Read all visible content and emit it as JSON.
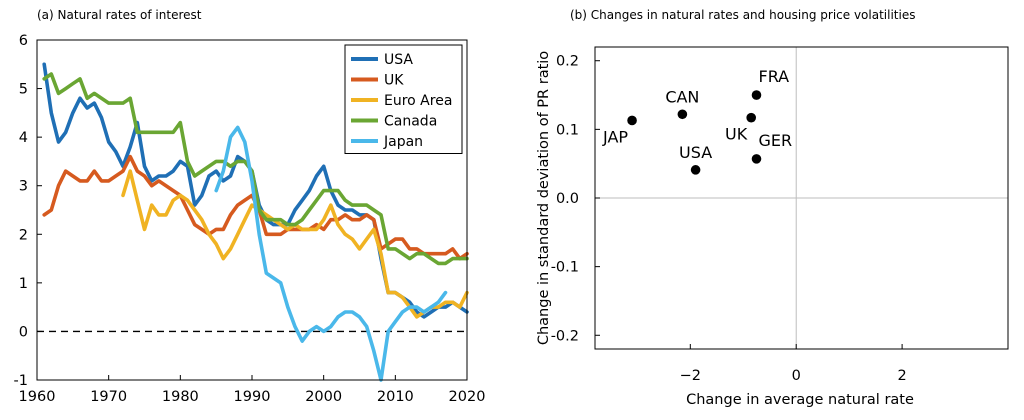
{
  "chart_data": [
    {
      "type": "line",
      "title": "(a) Natural rates of interest",
      "xlabel": "",
      "ylabel": "",
      "xlim": [
        1960,
        2020
      ],
      "ylim": [
        -1,
        6
      ],
      "xticks": [
        1960,
        1970,
        1980,
        1990,
        2000,
        2010,
        2020
      ],
      "yticks": [
        -1,
        0,
        1,
        2,
        3,
        4,
        5,
        6
      ],
      "reference_line": {
        "y": 0,
        "style": "dashed"
      },
      "legend_position": "top-right",
      "series": [
        {
          "name": "USA",
          "color": "#1f6fb5",
          "x": [
            1961,
            1962,
            1963,
            1964,
            1965,
            1966,
            1967,
            1968,
            1969,
            1970,
            1971,
            1972,
            1973,
            1974,
            1975,
            1976,
            1977,
            1978,
            1979,
            1980,
            1981,
            1982,
            1983,
            1984,
            1985,
            1986,
            1987,
            1988,
            1989,
            1990,
            1991,
            1992,
            1993,
            1994,
            1995,
            1996,
            1997,
            1998,
            1999,
            2000,
            2001,
            2002,
            2003,
            2004,
            2005,
            2006,
            2007,
            2008,
            2009,
            2010,
            2011,
            2012,
            2013,
            2014,
            2015,
            2016,
            2017,
            2018,
            2019,
            2020
          ],
          "y": [
            5.5,
            4.5,
            3.9,
            4.1,
            4.5,
            4.8,
            4.6,
            4.7,
            4.4,
            3.9,
            3.7,
            3.4,
            3.8,
            4.3,
            3.4,
            3.1,
            3.2,
            3.2,
            3.3,
            3.5,
            3.4,
            2.6,
            2.8,
            3.2,
            3.3,
            3.1,
            3.2,
            3.6,
            3.5,
            3.3,
            2.6,
            2.3,
            2.2,
            2.2,
            2.2,
            2.5,
            2.7,
            2.9,
            3.2,
            3.4,
            2.9,
            2.6,
            2.5,
            2.5,
            2.4,
            2.4,
            2.3,
            1.5,
            0.8,
            0.8,
            0.7,
            0.6,
            0.4,
            0.3,
            0.4,
            0.5,
            0.5,
            0.6,
            0.5,
            0.4
          ]
        },
        {
          "name": "UK",
          "color": "#d65a1f",
          "x": [
            1961,
            1962,
            1963,
            1964,
            1965,
            1966,
            1967,
            1968,
            1969,
            1970,
            1971,
            1972,
            1973,
            1974,
            1975,
            1976,
            1977,
            1978,
            1979,
            1980,
            1981,
            1982,
            1983,
            1984,
            1985,
            1986,
            1987,
            1988,
            1989,
            1990,
            1991,
            1992,
            1993,
            1994,
            1995,
            1996,
            1997,
            1998,
            1999,
            2000,
            2001,
            2002,
            2003,
            2004,
            2005,
            2006,
            2007,
            2008,
            2009,
            2010,
            2011,
            2012,
            2013,
            2014,
            2015,
            2016,
            2017,
            2018,
            2019,
            2020
          ],
          "y": [
            2.4,
            2.5,
            3.0,
            3.3,
            3.2,
            3.1,
            3.1,
            3.3,
            3.1,
            3.1,
            3.2,
            3.3,
            3.6,
            3.3,
            3.2,
            3.0,
            3.1,
            3.0,
            2.9,
            2.8,
            2.5,
            2.2,
            2.1,
            2.0,
            2.1,
            2.1,
            2.4,
            2.6,
            2.7,
            2.8,
            2.5,
            2.0,
            2.0,
            2.0,
            2.1,
            2.1,
            2.1,
            2.1,
            2.2,
            2.1,
            2.3,
            2.3,
            2.4,
            2.3,
            2.3,
            2.4,
            2.3,
            1.7,
            1.8,
            1.9,
            1.9,
            1.7,
            1.7,
            1.6,
            1.6,
            1.6,
            1.6,
            1.7,
            1.5,
            1.6
          ]
        },
        {
          "name": "Euro Area",
          "color": "#f0b323",
          "x": [
            1972,
            1973,
            1974,
            1975,
            1976,
            1977,
            1978,
            1979,
            1980,
            1981,
            1982,
            1983,
            1984,
            1985,
            1986,
            1987,
            1988,
            1989,
            1990,
            1991,
            1992,
            1993,
            1994,
            1995,
            1996,
            1997,
            1998,
            1999,
            2000,
            2001,
            2002,
            2003,
            2004,
            2005,
            2006,
            2007,
            2008,
            2009,
            2010,
            2011,
            2012,
            2013,
            2014,
            2015,
            2016,
            2017,
            2018,
            2019,
            2020
          ],
          "y": [
            2.8,
            3.3,
            2.7,
            2.1,
            2.6,
            2.4,
            2.4,
            2.7,
            2.8,
            2.7,
            2.5,
            2.3,
            2.0,
            1.8,
            1.5,
            1.7,
            2.0,
            2.3,
            2.6,
            2.5,
            2.4,
            2.3,
            2.2,
            2.1,
            2.2,
            2.1,
            2.1,
            2.1,
            2.3,
            2.6,
            2.2,
            2.0,
            1.9,
            1.7,
            1.9,
            2.1,
            1.6,
            0.8,
            0.8,
            0.7,
            0.5,
            0.3,
            0.4,
            0.5,
            0.5,
            0.6,
            0.6,
            0.5,
            0.8
          ]
        },
        {
          "name": "Canada",
          "color": "#6aa633",
          "x": [
            1961,
            1962,
            1963,
            1964,
            1965,
            1966,
            1967,
            1968,
            1969,
            1970,
            1971,
            1972,
            1973,
            1974,
            1975,
            1976,
            1977,
            1978,
            1979,
            1980,
            1981,
            1982,
            1983,
            1984,
            1985,
            1986,
            1987,
            1988,
            1989,
            1990,
            1991,
            1992,
            1993,
            1994,
            1995,
            1996,
            1997,
            1998,
            1999,
            2000,
            2001,
            2002,
            2003,
            2004,
            2005,
            2006,
            2007,
            2008,
            2009,
            2010,
            2011,
            2012,
            2013,
            2014,
            2015,
            2016,
            2017,
            2018,
            2019,
            2020
          ],
          "y": [
            5.2,
            5.3,
            4.9,
            5.0,
            5.1,
            5.2,
            4.8,
            4.9,
            4.8,
            4.7,
            4.7,
            4.7,
            4.8,
            4.1,
            4.1,
            4.1,
            4.1,
            4.1,
            4.1,
            4.3,
            3.5,
            3.2,
            3.3,
            3.4,
            3.5,
            3.5,
            3.4,
            3.5,
            3.5,
            3.3,
            2.5,
            2.3,
            2.3,
            2.3,
            2.2,
            2.2,
            2.3,
            2.5,
            2.7,
            2.9,
            2.9,
            2.9,
            2.7,
            2.6,
            2.6,
            2.6,
            2.5,
            2.4,
            1.7,
            1.7,
            1.6,
            1.5,
            1.6,
            1.6,
            1.5,
            1.4,
            1.4,
            1.5,
            1.5,
            1.5
          ]
        },
        {
          "name": "Japan",
          "color": "#4ab8ea",
          "x": [
            1985,
            1986,
            1987,
            1988,
            1989,
            1990,
            1991,
            1992,
            1993,
            1994,
            1995,
            1996,
            1997,
            1998,
            1999,
            2000,
            2001,
            2002,
            2003,
            2004,
            2005,
            2006,
            2007,
            2008,
            2009,
            2010,
            2011,
            2012,
            2013,
            2014,
            2015,
            2016,
            2017
          ],
          "y": [
            2.9,
            3.3,
            4.0,
            4.2,
            3.9,
            3.1,
            2.0,
            1.2,
            1.1,
            1.0,
            0.5,
            0.1,
            -0.2,
            0.0,
            0.1,
            0.0,
            0.1,
            0.3,
            0.4,
            0.4,
            0.3,
            0.1,
            -0.4,
            -1.0,
            0.0,
            0.2,
            0.4,
            0.5,
            0.5,
            0.4,
            0.5,
            0.6,
            0.8
          ]
        }
      ]
    },
    {
      "type": "scatter",
      "title": "(b) Changes in natural rates and housing price volatilities",
      "xlabel": "Change in average natural rate",
      "ylabel": "Change in standard deviation of PR ratio",
      "xlim": [
        -3.8,
        4.0
      ],
      "ylim": [
        -0.22,
        0.22
      ],
      "xticks": [
        -2,
        0,
        2
      ],
      "yticks": [
        0.2,
        0.1,
        0.0,
        -0.1,
        -0.2
      ],
      "ytick_labels": [
        "0.2",
        "0.1",
        "0.0",
        "-0.1",
        "-0.2"
      ],
      "reference_lines": {
        "x": 0,
        "y": 0
      },
      "points": [
        {
          "label": "JAP",
          "x": -3.1,
          "y": 0.113,
          "label_pos": "below-left"
        },
        {
          "label": "CAN",
          "x": -2.15,
          "y": 0.122,
          "label_pos": "above"
        },
        {
          "label": "FRA",
          "x": -0.75,
          "y": 0.15,
          "label_pos": "above-right"
        },
        {
          "label": "UK",
          "x": -0.85,
          "y": 0.117,
          "label_pos": "below-left"
        },
        {
          "label": "GER",
          "x": -0.75,
          "y": 0.057,
          "label_pos": "above-right"
        },
        {
          "label": "USA",
          "x": -1.9,
          "y": 0.041,
          "label_pos": "above"
        }
      ]
    }
  ]
}
